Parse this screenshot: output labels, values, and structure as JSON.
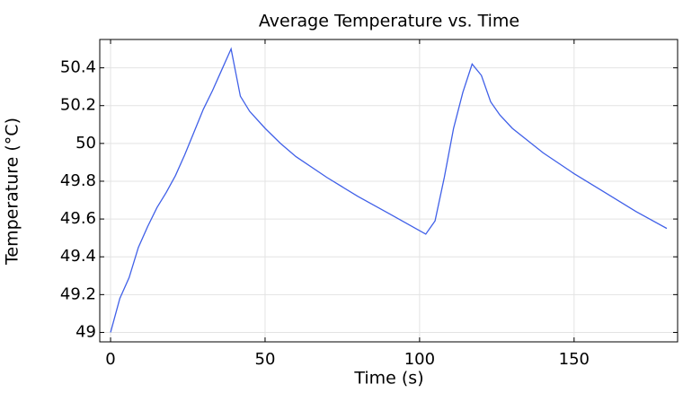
{
  "chart_data": {
    "type": "line",
    "title": "Average Temperature vs. Time",
    "x_label": "Time (s)",
    "y_label": "Temperature (°C)",
    "x": [
      0,
      3,
      6,
      9,
      12,
      15,
      18,
      21,
      24,
      27,
      30,
      33,
      36,
      39,
      42,
      45,
      50,
      55,
      60,
      70,
      80,
      90,
      102,
      105,
      108,
      111,
      114,
      117,
      120,
      123,
      126,
      130,
      140,
      150,
      160,
      170,
      180
    ],
    "series": [
      {
        "name": "Average Temperature",
        "color": "#4060e8",
        "values": [
          49.0,
          49.18,
          49.29,
          49.45,
          49.56,
          49.66,
          49.74,
          49.83,
          49.94,
          50.06,
          50.18,
          50.28,
          50.39,
          50.5,
          50.25,
          50.17,
          50.08,
          50.0,
          49.93,
          49.82,
          49.72,
          49.63,
          49.52,
          49.59,
          49.82,
          50.08,
          50.27,
          50.42,
          50.36,
          50.22,
          50.15,
          50.08,
          49.95,
          49.84,
          49.74,
          49.64,
          49.55
        ]
      }
    ],
    "xlim": [
      -3.5,
      183.5
    ],
    "ylim": [
      48.95,
      50.55
    ],
    "xticks": [
      0,
      50,
      100,
      150
    ],
    "yticks": [
      49,
      49.2,
      49.4,
      49.6,
      49.8,
      50,
      50.2,
      50.4
    ],
    "grid": true
  }
}
